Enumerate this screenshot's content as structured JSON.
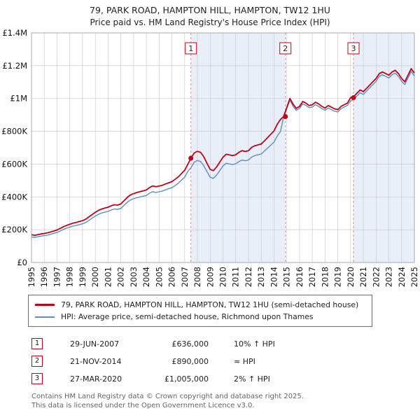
{
  "title": {
    "line1": "79, PARK ROAD, HAMPTON HILL, HAMPTON, TW12 1HU",
    "line2": "Price paid vs. HM Land Registry's House Price Index (HPI)"
  },
  "chart_data": {
    "type": "line",
    "title": "79, PARK ROAD, HAMPTON HILL, HAMPTON, TW12 1HU",
    "subtitle": "Price paid vs. HM Land Registry's House Price Index (HPI)",
    "xlabel": "",
    "ylabel": "",
    "grid": true,
    "legend_position": "below",
    "x_range": [
      1995,
      2025
    ],
    "y_unit": "GBP thousands",
    "y_max": 1400,
    "x_ticks": [
      1995,
      1996,
      1997,
      1998,
      1999,
      2000,
      2001,
      2002,
      2003,
      2004,
      2005,
      2006,
      2007,
      2008,
      2009,
      2010,
      2011,
      2012,
      2013,
      2014,
      2015,
      2016,
      2017,
      2018,
      2019,
      2020,
      2021,
      2022,
      2023,
      2024,
      2025
    ],
    "y_ticks": [
      {
        "label": "£0",
        "value": 0
      },
      {
        "label": "£200K",
        "value": 200
      },
      {
        "label": "£400K",
        "value": 400
      },
      {
        "label": "£600K",
        "value": 600
      },
      {
        "label": "£800K",
        "value": 800
      },
      {
        "label": "£1M",
        "value": 1000
      },
      {
        "label": "£1.2M",
        "value": 1200
      },
      {
        "label": "£1.4M",
        "value": 1400
      }
    ],
    "x_start": 1995,
    "x_step_years": 0.25,
    "series": [
      {
        "name": "79, PARK ROAD, HAMPTON HILL, HAMPTON, TW12 1HU (semi-detached house)",
        "color": "#c00018",
        "values": [
          170,
          166,
          170,
          174,
          177,
          181,
          186,
          192,
          198,
          208,
          218,
          226,
          233,
          240,
          244,
          250,
          255,
          264,
          278,
          292,
          306,
          318,
          326,
          332,
          337,
          346,
          352,
          350,
          357,
          377,
          397,
          412,
          420,
          427,
          432,
          437,
          442,
          457,
          467,
          462,
          466,
          471,
          479,
          486,
          493,
          507,
          522,
          542,
          562,
          600,
          636,
          668,
          678,
          672,
          645,
          605,
          568,
          560,
          582,
          612,
          642,
          660,
          656,
          652,
          657,
          672,
          682,
          677,
          682,
          702,
          712,
          717,
          722,
          742,
          762,
          782,
          802,
          842,
          872,
          890,
          945,
          1000,
          965,
          940,
          952,
          982,
          972,
          957,
          962,
          977,
          967,
          952,
          942,
          957,
          947,
          937,
          932,
          952,
          962,
          972,
          1005,
          1012,
          1032,
          1052,
          1042,
          1062,
          1082,
          1102,
          1122,
          1152,
          1162,
          1152,
          1142,
          1162,
          1172,
          1152,
          1122,
          1102,
          1142,
          1182,
          1155
        ]
      },
      {
        "name": "HPI: Average price, semi-detached house, Richmond upon Thames",
        "color": "#5b8ec4",
        "values": [
          156,
          153,
          157,
          161,
          164,
          167,
          172,
          178,
          183,
          192,
          202,
          209,
          216,
          222,
          226,
          231,
          236,
          244,
          257,
          270,
          283,
          294,
          302,
          307,
          312,
          320,
          326,
          324,
          330,
          349,
          367,
          381,
          389,
          395,
          400,
          404,
          409,
          423,
          432,
          427,
          431,
          436,
          443,
          450,
          456,
          469,
          483,
          502,
          520,
          556,
          578,
          612,
          622,
          616,
          590,
          554,
          520,
          513,
          533,
          560,
          588,
          605,
          601,
          597,
          602,
          615,
          625,
          620,
          625,
          643,
          652,
          657,
          661,
          680,
          698,
          716,
          734,
          771,
          798,
          885,
          938,
          990,
          952,
          928,
          940,
          968,
          958,
          944,
          948,
          962,
          952,
          938,
          928,
          942,
          932,
          922,
          918,
          938,
          948,
          958,
          985,
          995,
          1015,
          1035,
          1025,
          1045,
          1065,
          1085,
          1105,
          1135,
          1145,
          1135,
          1125,
          1145,
          1155,
          1135,
          1105,
          1085,
          1125,
          1165,
          1138
        ]
      }
    ],
    "sale_markers": [
      {
        "num": "1",
        "x": 2007.49,
        "value": 636,
        "date": "29-JUN-2007",
        "price_label": "£636,000"
      },
      {
        "num": "2",
        "x": 2014.89,
        "value": 890,
        "date": "21-NOV-2014",
        "price_label": "£890,000"
      },
      {
        "num": "3",
        "x": 2020.23,
        "value": 1005,
        "date": "27-MAR-2020",
        "price_label": "£1,005,000"
      }
    ],
    "shaded_regions": [
      [
        2007.49,
        2014.89
      ],
      [
        2020.23,
        2025
      ]
    ],
    "colors": {
      "grid": "#cccccc",
      "plot_border": "#aaaaaa",
      "shade": "#e9eff9",
      "marker_line": "#e28795",
      "accent": "#c00018",
      "hpi": "#5b8ec4"
    }
  },
  "legend": [
    {
      "label": "79, PARK ROAD, HAMPTON HILL, HAMPTON, TW12 1HU (semi-detached house)"
    },
    {
      "label": "HPI: Average price, semi-detached house, Richmond upon Thames"
    }
  ],
  "transactions": [
    {
      "num": "1",
      "date": "29-JUN-2007",
      "price": "£636,000",
      "hpi_note": "10% ↑ HPI"
    },
    {
      "num": "2",
      "date": "21-NOV-2014",
      "price": "£890,000",
      "hpi_note": "≈ HPI"
    },
    {
      "num": "3",
      "date": "27-MAR-2020",
      "price": "£1,005,000",
      "hpi_note": "2% ↑ HPI"
    }
  ],
  "footer": {
    "line1": "Contains HM Land Registry data © Crown copyright and database right 2025.",
    "line2": "This data is licensed under the Open Government Licence v3.0."
  }
}
